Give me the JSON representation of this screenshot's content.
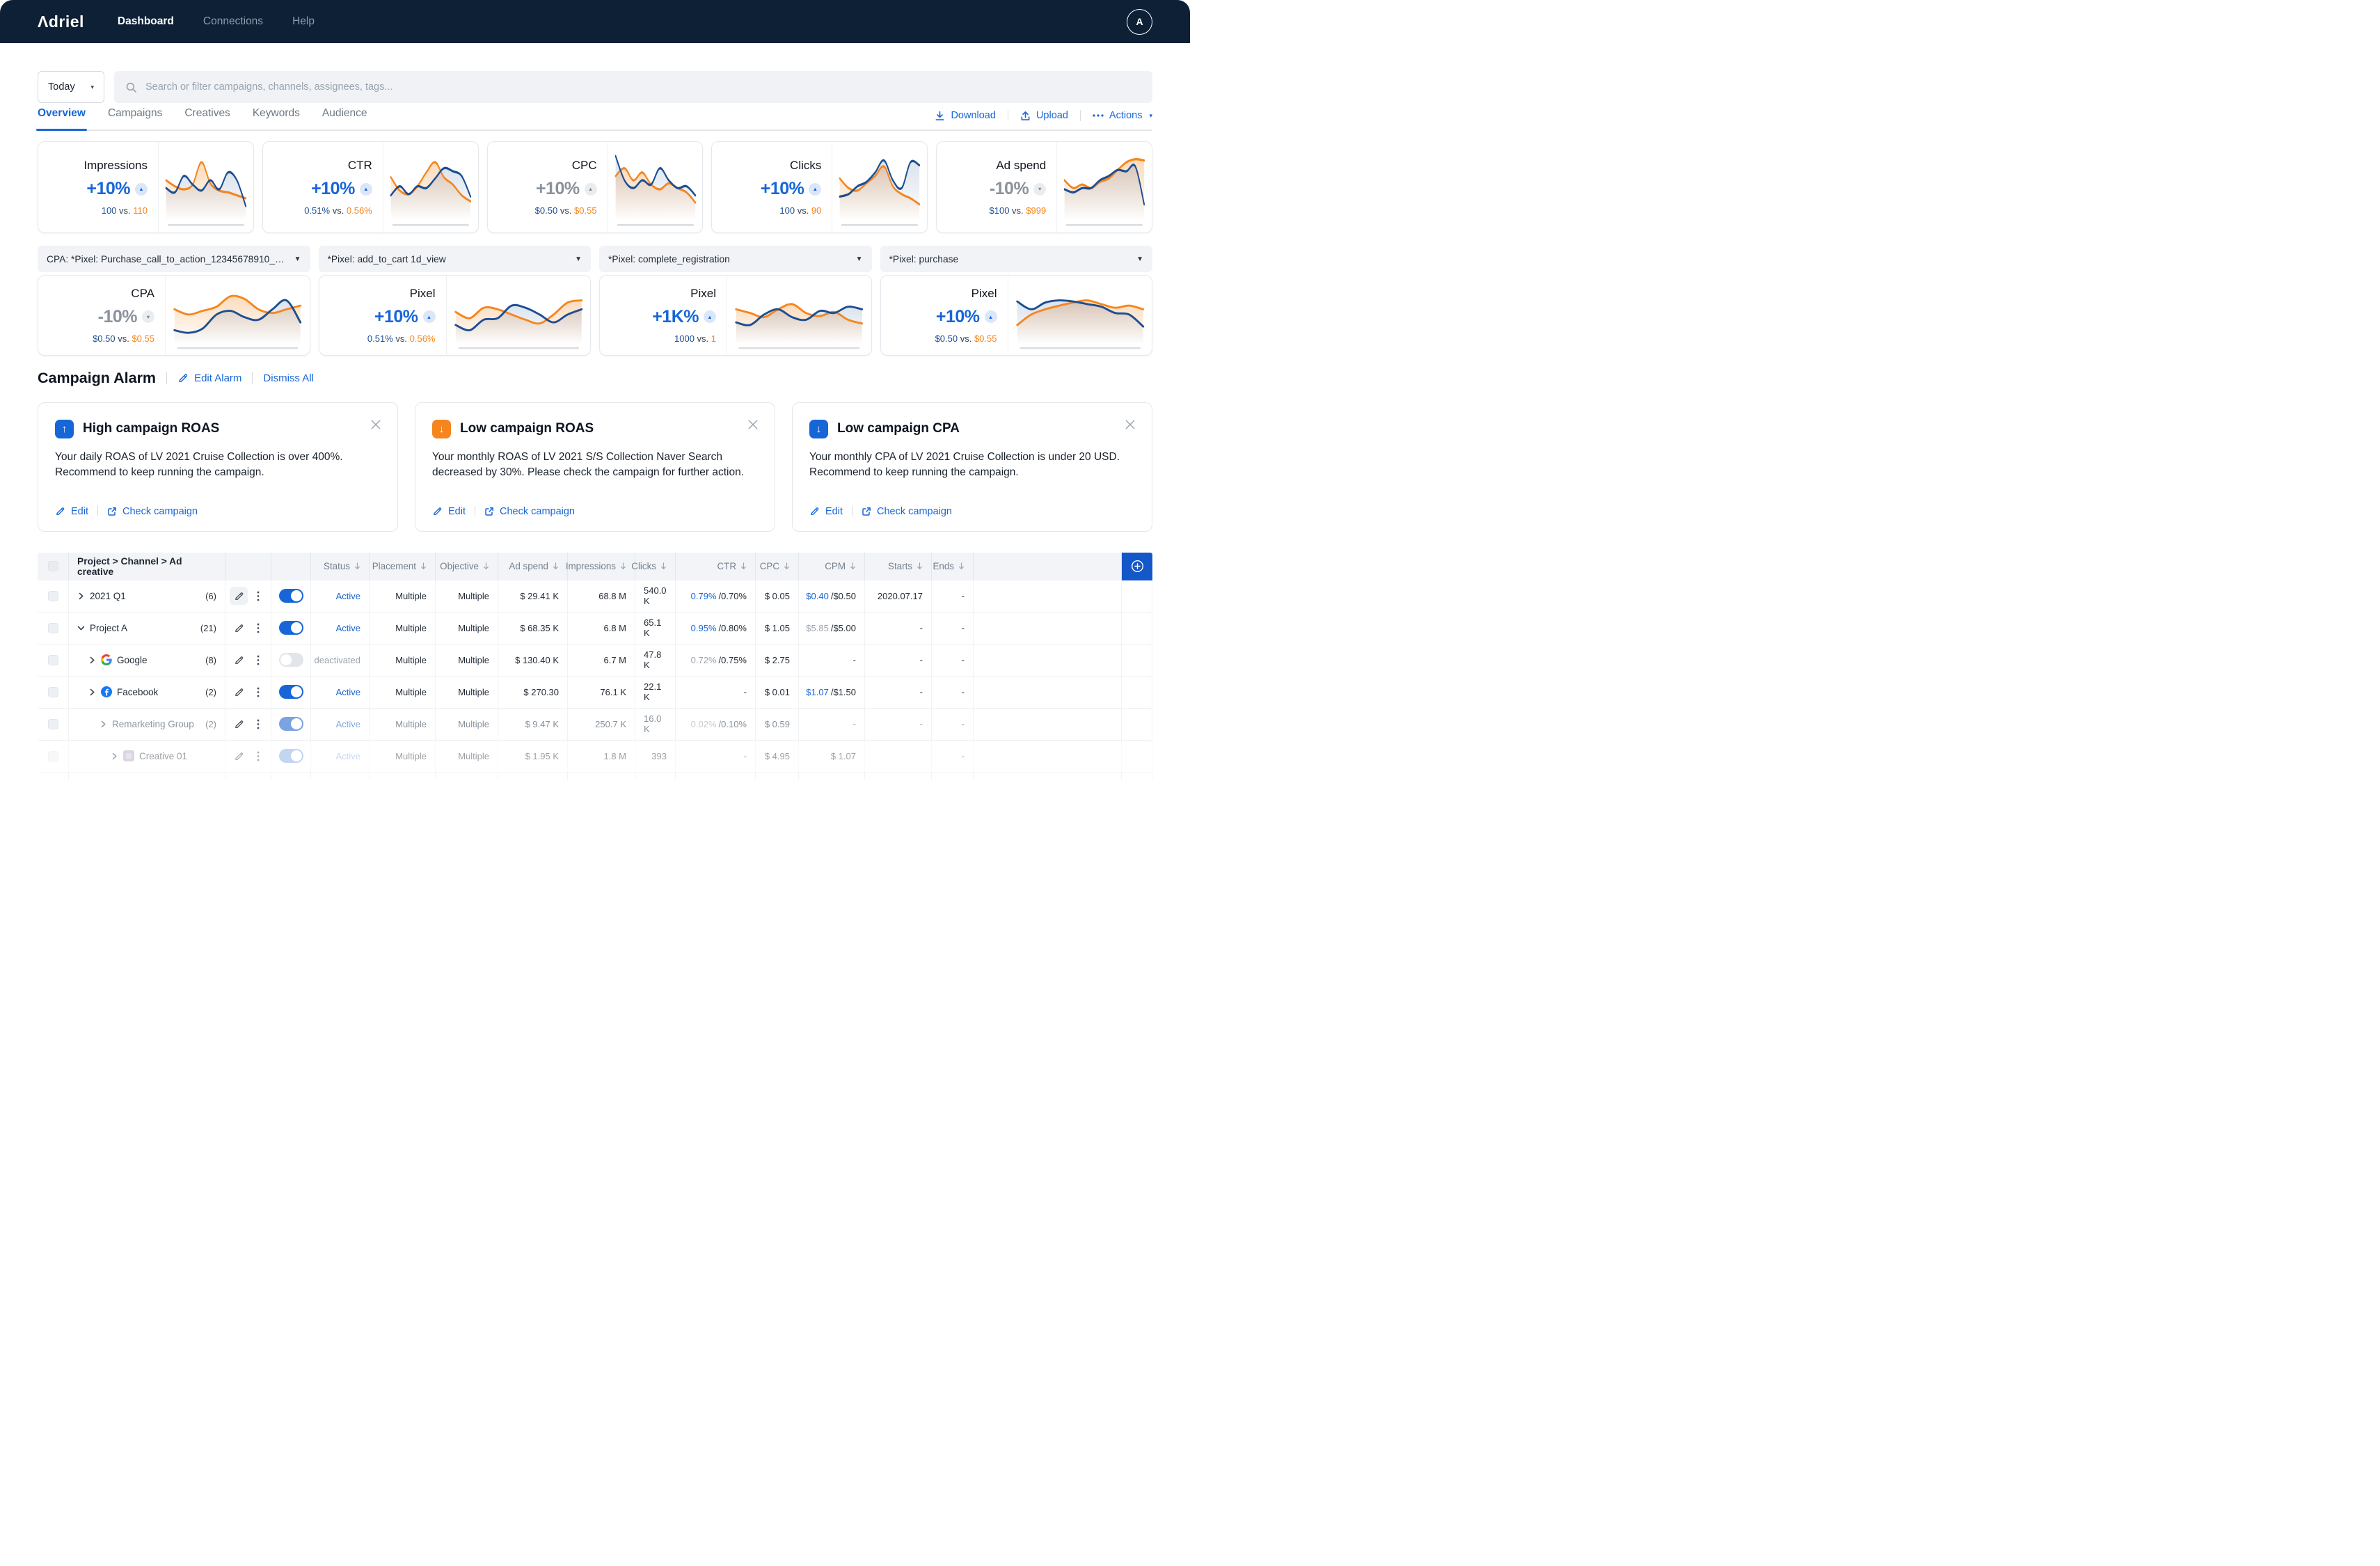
{
  "colors": {
    "accent_blue": "#1766d8",
    "orange": "#f5861f",
    "navy": "#1d4e91",
    "nav_bg": "#0d2036",
    "alarm_blue": "#1766d8",
    "alarm_orange": "#f5861f",
    "plus_button": "#1457c8"
  },
  "nav": {
    "brand": "Adriel",
    "items": [
      {
        "label": "Dashboard",
        "active": true
      },
      {
        "label": "Connections",
        "active": false
      },
      {
        "label": "Help",
        "active": false
      }
    ],
    "avatar_initial": "A"
  },
  "filters": {
    "date_range": "Today",
    "search_placeholder": "Search or filter campaigns, channels, assignees, tags..."
  },
  "tabs": [
    {
      "label": "Overview",
      "active": true
    },
    {
      "label": "Campaigns",
      "active": false
    },
    {
      "label": "Creatives",
      "active": false
    },
    {
      "label": "Keywords",
      "active": false
    },
    {
      "label": "Audience",
      "active": false
    }
  ],
  "toolbar": {
    "download": "Download",
    "upload": "Upload",
    "actions": "Actions"
  },
  "vs_label": "vs.",
  "kpi_cards": [
    {
      "title": "Impressions",
      "delta": "+10%",
      "direction": "up",
      "tone": "blue",
      "current": "100",
      "previous": "110",
      "spark": {
        "navy": [
          0.42,
          0.35,
          0.62,
          0.48,
          0.38,
          0.55,
          0.4,
          0.68,
          0.55,
          0.12
        ],
        "orange": [
          0.55,
          0.45,
          0.4,
          0.48,
          0.85,
          0.5,
          0.38,
          0.35,
          0.3,
          0.25
        ]
      }
    },
    {
      "title": "CTR",
      "delta": "+10%",
      "direction": "up",
      "tone": "blue",
      "current": "0.51%",
      "previous": "0.56%",
      "spark": {
        "navy": [
          0.3,
          0.45,
          0.32,
          0.45,
          0.42,
          0.58,
          0.75,
          0.7,
          0.62,
          0.28
        ],
        "orange": [
          0.6,
          0.38,
          0.32,
          0.45,
          0.68,
          0.85,
          0.6,
          0.48,
          0.3,
          0.2
        ]
      }
    },
    {
      "title": "CPC",
      "delta": "+10%",
      "direction": "up",
      "tone": "grey",
      "current": "$0.50",
      "previous": "$0.55",
      "spark": {
        "navy": [
          0.95,
          0.55,
          0.42,
          0.55,
          0.48,
          0.75,
          0.55,
          0.42,
          0.45,
          0.3
        ],
        "orange": [
          0.62,
          0.75,
          0.55,
          0.68,
          0.48,
          0.4,
          0.5,
          0.42,
          0.35,
          0.18
        ]
      }
    },
    {
      "title": "Clicks",
      "delta": "+10%",
      "direction": "up",
      "tone": "blue",
      "current": "100",
      "previous": "90",
      "spark": {
        "navy": [
          0.28,
          0.32,
          0.45,
          0.52,
          0.68,
          0.88,
          0.55,
          0.42,
          0.85,
          0.8
        ],
        "orange": [
          0.58,
          0.42,
          0.38,
          0.5,
          0.62,
          0.78,
          0.45,
          0.32,
          0.25,
          0.15
        ]
      }
    },
    {
      "title": "Ad spend",
      "delta": "-10%",
      "direction": "down",
      "tone": "grey",
      "current": "$100",
      "previous": "$999",
      "spark": {
        "navy": [
          0.4,
          0.35,
          0.42,
          0.42,
          0.55,
          0.62,
          0.72,
          0.7,
          0.78,
          0.15
        ],
        "orange": [
          0.55,
          0.42,
          0.48,
          0.42,
          0.52,
          0.58,
          0.72,
          0.85,
          0.9,
          0.88
        ]
      }
    }
  ],
  "pixel_cards": [
    {
      "selector": "CPA: *Pixel: Purchase_call_to_action_12345678910_abc...",
      "title": "CPA",
      "delta": "-10%",
      "direction": "down",
      "tone": "grey",
      "current": "$0.50",
      "previous": "$0.55",
      "spark": {
        "navy": [
          0.15,
          0.1,
          0.18,
          0.45,
          0.52,
          0.4,
          0.35,
          0.55,
          0.72,
          0.3
        ],
        "orange": [
          0.55,
          0.45,
          0.52,
          0.6,
          0.8,
          0.75,
          0.55,
          0.48,
          0.55,
          0.62
        ]
      }
    },
    {
      "selector": "*Pixel: add_to_cart 1d_view",
      "title": "Pixel",
      "delta": "+10%",
      "direction": "up",
      "tone": "blue",
      "current": "0.51%",
      "previous": "0.56%",
      "spark": {
        "navy": [
          0.25,
          0.15,
          0.35,
          0.38,
          0.62,
          0.58,
          0.45,
          0.3,
          0.45,
          0.55
        ],
        "orange": [
          0.5,
          0.38,
          0.58,
          0.55,
          0.45,
          0.35,
          0.28,
          0.45,
          0.68,
          0.72
        ]
      }
    },
    {
      "selector": "*Pixel: complete_registration",
      "title": "Pixel",
      "delta": "+1K%",
      "direction": "up",
      "tone": "blue",
      "current": "1000",
      "previous": "1",
      "spark": {
        "navy": [
          0.3,
          0.25,
          0.45,
          0.55,
          0.4,
          0.35,
          0.52,
          0.48,
          0.6,
          0.55
        ],
        "orange": [
          0.55,
          0.48,
          0.4,
          0.55,
          0.65,
          0.48,
          0.42,
          0.5,
          0.35,
          0.28
        ]
      }
    },
    {
      "selector": "*Pixel: purchase",
      "title": "Pixel",
      "delta": "+10%",
      "direction": "up",
      "tone": "blue",
      "current": "$0.50",
      "previous": "$0.55",
      "spark": {
        "navy": [
          0.7,
          0.55,
          0.68,
          0.72,
          0.7,
          0.65,
          0.6,
          0.48,
          0.45,
          0.22
        ],
        "orange": [
          0.25,
          0.45,
          0.55,
          0.62,
          0.68,
          0.72,
          0.65,
          0.58,
          0.62,
          0.55
        ]
      }
    }
  ],
  "alarm": {
    "title": "Campaign Alarm",
    "edit_label": "Edit Alarm",
    "dismiss_label": "Dismiss All",
    "edit_action": "Edit",
    "check_action": "Check campaign",
    "cards": [
      {
        "icon": "arrow-up",
        "icon_color": "#1766d8",
        "title": "High campaign ROAS",
        "body": "Your daily ROAS of LV 2021 Cruise Collection is over 400%. Recommend to keep running the campaign."
      },
      {
        "icon": "arrow-down",
        "icon_color": "#f5861f",
        "title": "Low campaign ROAS",
        "body": "Your monthly ROAS of LV 2021 S/S Collection Naver Search decreased by 30%. Please check the campaign for further action."
      },
      {
        "icon": "arrow-down",
        "icon_color": "#1766d8",
        "title": "Low campaign CPA",
        "body": "Your monthly CPA of LV 2021 Cruise Collection is under 20 USD. Recommend to keep running the campaign."
      }
    ]
  },
  "table": {
    "name_header": "Project > Channel > Ad creative",
    "columns": [
      "Status",
      "Placement",
      "Objective",
      "Ad spend",
      "Impressions",
      "Clicks",
      "CTR",
      "CPC",
      "CPM",
      "Starts",
      "Ends"
    ],
    "rows": [
      {
        "name": "2021 Q1",
        "count": "(6)",
        "level": 1,
        "expanded": false,
        "channel_icon": null,
        "edit_highlight": true,
        "muted": false,
        "faded": false,
        "toggle": "on",
        "status": "Active",
        "status_tone": "active",
        "placement": "Multiple",
        "objective": "Multiple",
        "ad_spend": "$ 29.41 K",
        "impressions": "68.8 M",
        "clicks": "540.0 K",
        "ctr": {
          "primary": "0.79%",
          "tone": "blue",
          "secondary": "/0.70%"
        },
        "cpc": "$ 0.05",
        "cpm": {
          "primary": "$0.40",
          "tone": "blue",
          "secondary": "/$0.50"
        },
        "starts": "2020.07.17",
        "ends": "-"
      },
      {
        "name": "Project A",
        "count": "(21)",
        "level": 1,
        "expanded": true,
        "channel_icon": null,
        "edit_highlight": false,
        "muted": false,
        "faded": false,
        "toggle": "on",
        "status": "Active",
        "status_tone": "active",
        "placement": "Multiple",
        "objective": "Multiple",
        "ad_spend": "$ 68.35 K",
        "impressions": "6.8 M",
        "clicks": "65.1 K",
        "ctr": {
          "primary": "0.95%",
          "tone": "blue",
          "secondary": "/0.80%"
        },
        "cpc": "$ 1.05",
        "cpm": {
          "primary": "$5.85",
          "tone": "grey",
          "secondary": "/$5.00"
        },
        "starts": "-",
        "ends": "-"
      },
      {
        "name": "Google",
        "count": "(8)",
        "level": 2,
        "expanded": false,
        "channel_icon": "google",
        "edit_highlight": false,
        "muted": false,
        "faded": false,
        "toggle": "off",
        "status": "deactivated",
        "status_tone": "deactivated",
        "placement": "Multiple",
        "objective": "Multiple",
        "ad_spend": "$ 130.40 K",
        "impressions": "6.7 M",
        "clicks": "47.8 K",
        "ctr": {
          "primary": "0.72%",
          "tone": "grey",
          "secondary": "/0.75%"
        },
        "cpc": "$ 2.75",
        "cpm": "-",
        "starts": "-",
        "ends": "-"
      },
      {
        "name": "Facebook",
        "count": "(2)",
        "level": 2,
        "expanded": false,
        "channel_icon": "facebook",
        "edit_highlight": false,
        "muted": false,
        "faded": false,
        "toggle": "on",
        "status": "Active",
        "status_tone": "active",
        "placement": "Multiple",
        "objective": "Multiple",
        "ad_spend": "$ 270.30",
        "impressions": "76.1 K",
        "clicks": "22.1 K",
        "ctr": "-",
        "cpc": "$ 0.01",
        "cpm": {
          "primary": "$1.07",
          "tone": "blue",
          "secondary": "/$1.50"
        },
        "starts": "-",
        "ends": "-"
      },
      {
        "name": "Remarketing Group",
        "count": "(2)",
        "level": 3,
        "expanded": false,
        "channel_icon": null,
        "edit_highlight": false,
        "muted": true,
        "faded": false,
        "toggle": "light",
        "status": "Active",
        "status_tone": "light",
        "placement": "Multiple",
        "objective": "Multiple",
        "ad_spend": "$ 9.47 K",
        "impressions": "250.7 K",
        "clicks": "16.0 K",
        "ctr": {
          "primary": "0.02%",
          "tone": "faint",
          "secondary": "/0.10%"
        },
        "cpc": "$ 0.59",
        "cpm": "-",
        "starts": "-",
        "ends": "-"
      },
      {
        "name": "Creative 01",
        "count": "",
        "level": 4,
        "expanded": false,
        "channel_icon": "creative",
        "edit_highlight": false,
        "muted": false,
        "faded": true,
        "toggle": "light",
        "status": "Active",
        "status_tone": "light",
        "placement": "Multiple",
        "objective": "Multiple",
        "ad_spend": "$ 1.95 K",
        "impressions": "1.8 M",
        "clicks": "393",
        "ctr": "-",
        "cpc": "$ 4.95",
        "cpm": "$ 1.07",
        "starts": "",
        "ends": "-"
      }
    ]
  }
}
